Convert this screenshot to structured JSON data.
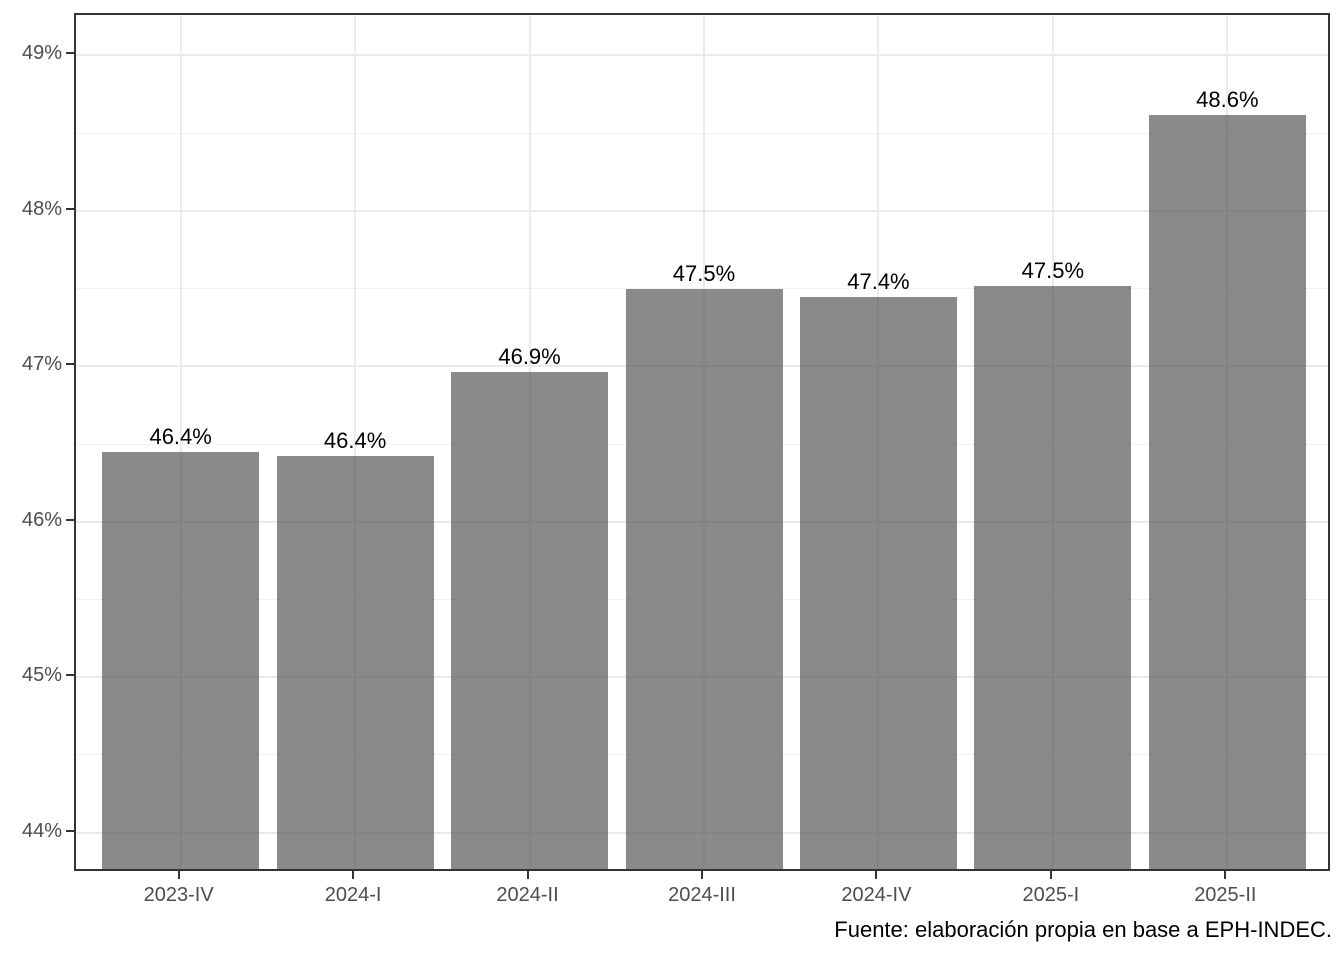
{
  "chart": {
    "caption": "Fuente: elaboración propia en base a EPH-INDEC."
  },
  "chart_data": {
    "type": "bar",
    "categories": [
      "2023-IV",
      "2024-I",
      "2024-II",
      "2024-III",
      "2024-IV",
      "2025-I",
      "2025-II"
    ],
    "values": [
      46.4,
      46.4,
      46.9,
      47.5,
      47.4,
      47.5,
      48.6
    ],
    "values_plotted_estimate": [
      46.42,
      46.4,
      46.94,
      47.47,
      47.42,
      47.49,
      48.59
    ],
    "bar_labels": [
      "46.4%",
      "46.4%",
      "46.9%",
      "47.5%",
      "47.4%",
      "47.5%",
      "48.6%"
    ],
    "title": "",
    "xlabel": "",
    "ylabel": "",
    "y_tick_labels": [
      "44%",
      "45%",
      "46%",
      "47%",
      "48%",
      "49%"
    ],
    "y_tick_values": [
      44,
      45,
      46,
      47,
      48,
      49
    ],
    "y_minor_values": [
      44.5,
      45.5,
      46.5,
      47.5,
      48.5
    ],
    "ylim": [
      43.74,
      49.26
    ],
    "bar_width_ratio": 0.9,
    "grid": "horizontal major+minor, vertical major at category centers, drawn under semi-transparent bars",
    "legend": "none",
    "caption": "Fuente: elaboración propia en base a EPH-INDEC.",
    "colors": {
      "bar_fill_rgba": "rgba(89,89,89,0.7)",
      "bar_fill_effective": "#8B8B8B",
      "grid_major": "#EBEBEB",
      "grid_minor": "#F1F1F1",
      "panel_border": "#333333",
      "axis_tick": "#333333",
      "axis_text": "#4D4D4D",
      "label_text": "#000000",
      "background": "#FFFFFF"
    }
  }
}
